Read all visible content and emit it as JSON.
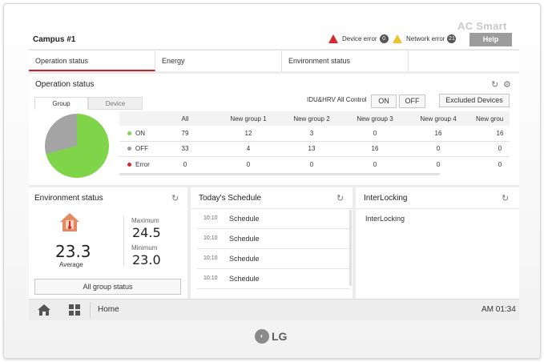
{
  "brand": "AC Smart",
  "header": {
    "campus": "Campus #1",
    "device_error_label": "Device error",
    "device_error_count": "0",
    "network_error_label": "Network error",
    "network_error_count": "21",
    "help_label": "Help"
  },
  "tabs": [
    "Operation status",
    "Energy",
    "Environment status",
    ""
  ],
  "operation": {
    "title": "Operation status",
    "subtabs": [
      "Group",
      "Device"
    ],
    "control_label": "IDU&HRV All Control",
    "on_label": "ON",
    "off_label": "OFF",
    "excluded_label": "Excluded Devices",
    "columns": [
      "All",
      "New group 1",
      "New group 2",
      "New group 3",
      "New group 4",
      "New grou"
    ],
    "rows": [
      {
        "label": "ON",
        "color": "#7fd44a",
        "values": [
          "79",
          "12",
          "3",
          "0",
          "16",
          "16"
        ]
      },
      {
        "label": "OFF",
        "color": "#9a9a9a",
        "values": [
          "33",
          "4",
          "13",
          "16",
          "0",
          "0"
        ]
      },
      {
        "label": "Error",
        "color": "#d7262d",
        "values": [
          "0",
          "0",
          "0",
          "0",
          "0",
          "0"
        ]
      }
    ]
  },
  "environment": {
    "title": "Environment status",
    "average_value": "23.3",
    "average_label": "Average",
    "maximum_label": "Maximum",
    "maximum_value": "24.5",
    "minimum_label": "Minimum",
    "minimum_value": "23.0",
    "all_group_label": "All group status"
  },
  "schedule": {
    "title": "Today's Schedule",
    "items": [
      {
        "time": "10:10",
        "name": "Schedule"
      },
      {
        "time": "10:10",
        "name": "Schedule"
      },
      {
        "time": "10:10",
        "name": "Schedule"
      },
      {
        "time": "10:10",
        "name": "Schedule"
      }
    ]
  },
  "interlocking": {
    "title": "InterLocking",
    "items": [
      "InterLocking"
    ]
  },
  "footer": {
    "home_label": "Home",
    "clock": "AM 01:34"
  },
  "logo": "LG"
}
